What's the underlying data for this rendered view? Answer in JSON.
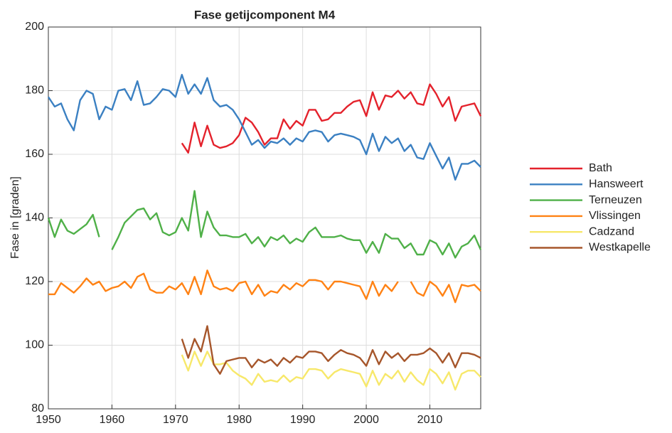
{
  "chart_data": {
    "type": "line",
    "title": "Fase getijcomponent M4",
    "y_label": "Fase in [graden]",
    "x": [
      1950,
      1951,
      1952,
      1953,
      1954,
      1955,
      1956,
      1957,
      1958,
      1959,
      1960,
      1961,
      1962,
      1963,
      1964,
      1965,
      1966,
      1967,
      1968,
      1969,
      1970,
      1971,
      1972,
      1973,
      1974,
      1975,
      1976,
      1977,
      1978,
      1979,
      1980,
      1981,
      1982,
      1983,
      1984,
      1985,
      1986,
      1987,
      1988,
      1989,
      1990,
      1991,
      1992,
      1993,
      1994,
      1995,
      1996,
      1997,
      1998,
      1999,
      2000,
      2001,
      2002,
      2003,
      2004,
      2005,
      2006,
      2007,
      2008,
      2009,
      2010,
      2011,
      2012,
      2013,
      2014,
      2015,
      2016,
      2017,
      2018
    ],
    "xlim": [
      1950,
      2018
    ],
    "xticks": [
      1950,
      1960,
      1970,
      1980,
      1990,
      2000,
      2010
    ],
    "ylim": [
      80,
      200
    ],
    "yticks": [
      80,
      100,
      120,
      140,
      160,
      180,
      200
    ],
    "grid": true,
    "legend": "outside right",
    "series": [
      {
        "name": "Bath",
        "color": "#e4222c",
        "values": [
          null,
          null,
          null,
          null,
          null,
          null,
          null,
          null,
          null,
          null,
          null,
          null,
          null,
          null,
          null,
          null,
          null,
          null,
          null,
          null,
          null,
          163.5,
          160.5,
          170,
          162.5,
          169,
          163,
          162,
          162.5,
          163.5,
          166,
          171.5,
          170,
          167,
          163,
          165,
          165,
          171,
          168,
          170.5,
          169,
          174,
          174,
          170.5,
          171,
          173,
          173,
          175,
          176.5,
          177,
          172,
          179.5,
          174,
          178.5,
          178,
          180,
          177.5,
          179.5,
          176,
          175.5,
          182,
          179,
          175,
          178,
          170.5,
          175,
          175.5,
          176,
          172
        ]
      },
      {
        "name": "Hansweert",
        "color": "#3b80c2",
        "values": [
          178,
          175,
          176,
          171,
          167.5,
          177,
          180,
          179,
          171,
          175,
          174,
          180,
          180.5,
          177,
          183,
          175.5,
          176,
          178,
          180.5,
          180,
          178,
          185,
          179,
          182,
          179,
          184,
          177,
          175,
          175.5,
          174,
          171,
          167,
          163,
          164.5,
          162,
          164,
          163.5,
          165,
          163,
          165,
          164,
          167,
          167.5,
          167,
          164,
          166,
          166.5,
          166,
          165.5,
          164.5,
          160,
          166.5,
          161,
          165.5,
          163.5,
          165,
          161,
          163,
          159,
          158.5,
          163.5,
          159.5,
          155.5,
          159,
          152,
          157,
          157,
          158,
          156
        ]
      },
      {
        "name": "Terneuzen",
        "color": "#4fb048",
        "values": [
          140,
          134,
          139.5,
          136,
          135,
          136.5,
          138,
          141,
          134,
          null,
          130,
          134,
          138.5,
          140.5,
          142.5,
          143,
          139.5,
          141.5,
          135.5,
          134.5,
          135.5,
          140,
          136,
          148.5,
          134,
          142,
          137,
          134.5,
          134.5,
          134,
          134,
          135,
          132,
          134,
          131,
          134,
          133,
          134.5,
          132,
          133.5,
          132.5,
          135.5,
          137,
          134,
          134,
          134,
          134.5,
          133.5,
          133,
          133,
          129,
          132.5,
          129,
          135,
          133.5,
          133.5,
          130.5,
          132,
          128.5,
          128.5,
          133,
          132,
          128.5,
          132,
          127.5,
          131,
          132,
          134.5,
          130
        ]
      },
      {
        "name": "Vlissingen",
        "color": "#ff8214",
        "values": [
          116,
          116,
          119.5,
          118,
          116.5,
          118.5,
          121,
          119,
          120,
          117,
          118,
          118.5,
          120,
          118,
          121.5,
          122.5,
          117.5,
          116.5,
          116.5,
          118.5,
          117.5,
          119.5,
          116,
          121.5,
          116,
          123.5,
          118.5,
          117.5,
          118,
          117,
          119.5,
          120,
          116,
          119,
          115.5,
          117,
          116.5,
          119,
          117.5,
          119.5,
          118.5,
          120.5,
          120.5,
          120,
          117.5,
          120,
          120,
          119.5,
          119,
          118.5,
          114.5,
          120,
          115.5,
          119,
          117,
          120,
          null,
          120,
          116.5,
          115.5,
          120,
          118.5,
          115.5,
          119,
          113.5,
          119,
          118.5,
          119,
          117
        ]
      },
      {
        "name": "Cadzand",
        "color": "#f7e86a",
        "values": [
          null,
          null,
          null,
          null,
          null,
          null,
          null,
          null,
          null,
          null,
          null,
          null,
          null,
          null,
          null,
          null,
          null,
          null,
          null,
          null,
          null,
          97,
          92,
          98,
          93.5,
          98,
          94,
          94,
          94.5,
          92,
          90.5,
          89.5,
          87.5,
          91,
          88.5,
          89,
          88.5,
          90.5,
          88.5,
          90,
          89.5,
          92.5,
          92.5,
          92,
          89.5,
          91.5,
          92.5,
          92,
          91.5,
          91,
          87,
          92,
          87.5,
          91,
          89.5,
          92,
          88.5,
          91.5,
          89,
          87.5,
          92.5,
          91,
          88,
          91.5,
          86,
          91,
          92,
          92,
          90
        ]
      },
      {
        "name": "Westkapelle",
        "color": "#a6562b",
        "values": [
          null,
          null,
          null,
          null,
          null,
          null,
          null,
          null,
          null,
          null,
          null,
          null,
          null,
          null,
          null,
          null,
          null,
          null,
          null,
          null,
          null,
          102,
          96,
          102,
          98,
          106,
          94,
          91,
          95,
          95.5,
          96,
          96,
          93,
          95.5,
          94.5,
          95.5,
          93.5,
          96,
          94.5,
          96.5,
          96,
          98,
          98,
          97.5,
          95,
          97,
          98.5,
          97.5,
          97,
          96,
          93.5,
          98.5,
          94,
          98,
          96,
          97.5,
          95,
          97,
          97,
          97.5,
          99,
          97.5,
          94.5,
          97.5,
          93,
          97.5,
          97.5,
          97,
          96
        ]
      }
    ]
  }
}
